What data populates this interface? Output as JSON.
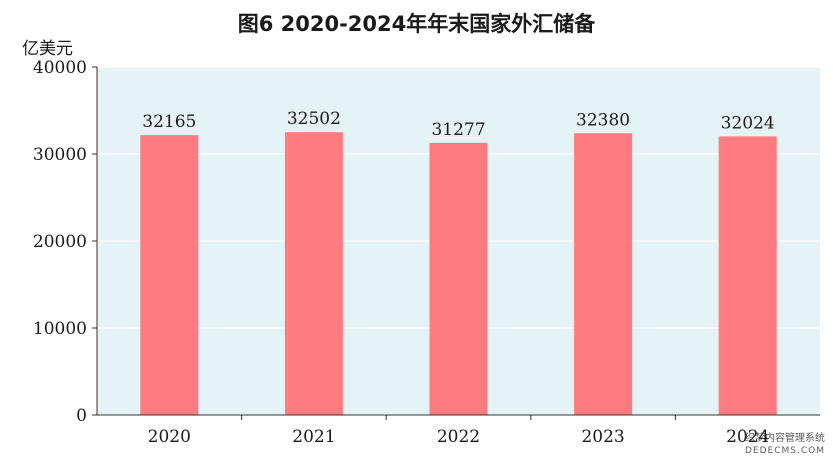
{
  "chart_data": {
    "type": "bar",
    "title": "图6   2020-2024年年末国家外汇储备",
    "unit_label": "亿美元",
    "categories": [
      "2020",
      "2021",
      "2022",
      "2023",
      "2024"
    ],
    "values": [
      32165,
      32502,
      31277,
      32380,
      32024
    ],
    "data_labels": [
      "32165",
      "32502",
      "31277",
      "32380",
      "32024"
    ],
    "ylim": [
      0,
      40000
    ],
    "yticks": [
      0,
      10000,
      20000,
      30000,
      40000
    ],
    "ytick_labels": [
      "0",
      "10000",
      "20000",
      "30000",
      "40000"
    ],
    "grid": true,
    "legend": "none",
    "colors": {
      "bar": "#ff7b7f",
      "plot_background": "#e6f3f6",
      "grid": "#ffffff",
      "axis": "#333333"
    }
  },
  "watermark": {
    "line1": "织梦内容管理系统",
    "line2": "DEDECMS.COM"
  }
}
